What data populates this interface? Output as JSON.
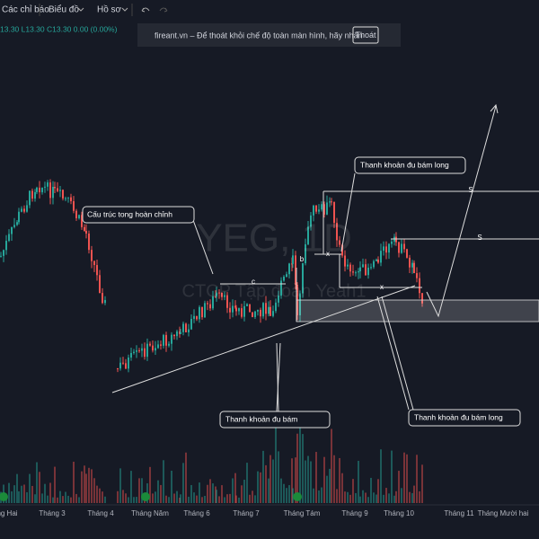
{
  "toolbar": {
    "items": [
      "Các chỉ báo",
      "Biểu đồ",
      "Hồ sơ"
    ]
  },
  "ohlc": "13.30 L13.30 C13.30 0.00 (0.00%)",
  "notice": {
    "text": "fireant.vn – Để thoát khỏi chế độ toàn màn hình, hãy nhấn",
    "button": "Thoát"
  },
  "watermark": {
    "symbol": "YEG, 1D",
    "company": "CTCP Tập đoàn Yeah1"
  },
  "annotations": [
    "Cấu trúc tong hoàn chỉnh",
    "Thanh khoản đu bám long",
    "Thanh khoản đu bám",
    "Thanh khoản đu bám long"
  ],
  "markers": [
    "c",
    "b",
    "x",
    "x",
    "S",
    "S"
  ],
  "x_axis": [
    "ng Hai",
    "Tháng 3",
    "Tháng 4",
    "Tháng Năm",
    "Tháng 6",
    "Tháng 7",
    "Tháng Tám",
    "Tháng 9",
    "Tháng 10",
    "Tháng 11",
    "Tháng Mười hai"
  ]
}
